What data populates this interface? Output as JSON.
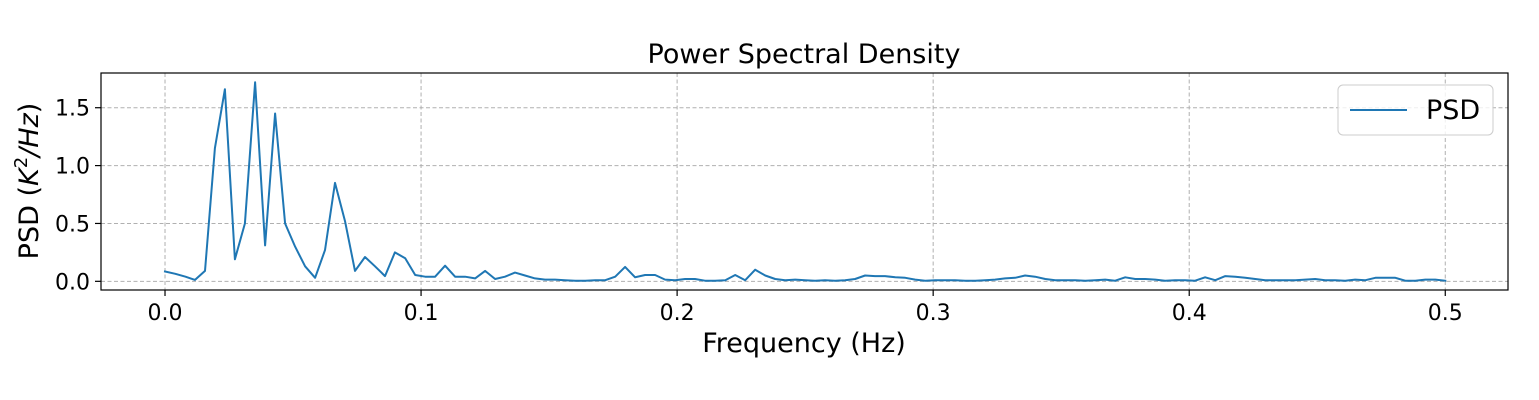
{
  "chart_data": {
    "type": "line",
    "title": "Power Spectral Density",
    "xlabel": "Frequency (Hz)",
    "ylabel_main": "PSD (",
    "ylabel_math": "K",
    "ylabel_sup": "2",
    "ylabel_rest": "/Hz",
    "ylabel_close": ")",
    "xlim": [
      -0.025,
      0.5245
    ],
    "ylim": [
      -0.075,
      1.8
    ],
    "xticks": [
      0.0,
      0.1,
      0.2,
      0.3,
      0.4,
      0.5
    ],
    "xtick_labels": [
      "0.0",
      "0.1",
      "0.2",
      "0.3",
      "0.4",
      "0.5"
    ],
    "yticks": [
      0.0,
      0.5,
      1.0,
      1.5
    ],
    "ytick_labels": [
      "0.0",
      "0.5",
      "1.0",
      "1.5"
    ],
    "grid": true,
    "legend": {
      "position": "upper-right",
      "entries": [
        "PSD"
      ]
    },
    "series": [
      {
        "name": "PSD",
        "color": "#1f77b4",
        "x": [
          0.0,
          0.004,
          0.008,
          0.0117,
          0.0156,
          0.0195,
          0.0234,
          0.0273,
          0.0312,
          0.0352,
          0.0391,
          0.043,
          0.0469,
          0.0508,
          0.0547,
          0.0586,
          0.0625,
          0.0664,
          0.0703,
          0.0742,
          0.0781,
          0.082,
          0.0859,
          0.0898,
          0.0938,
          0.0977,
          0.1016,
          0.1055,
          0.1094,
          0.1133,
          0.1172,
          0.1211,
          0.125,
          0.1289,
          0.1328,
          0.1367,
          0.1406,
          0.1445,
          0.1484,
          0.1523,
          0.1562,
          0.1602,
          0.1641,
          0.168,
          0.1719,
          0.1758,
          0.1797,
          0.1836,
          0.1875,
          0.1914,
          0.1953,
          0.1992,
          0.2031,
          0.207,
          0.2109,
          0.2148,
          0.2188,
          0.2227,
          0.2266,
          0.2305,
          0.2344,
          0.2383,
          0.2422,
          0.2461,
          0.25,
          0.2539,
          0.2578,
          0.2617,
          0.2656,
          0.2695,
          0.2734,
          0.2773,
          0.2812,
          0.2852,
          0.2891,
          0.293,
          0.2969,
          0.3008,
          0.3047,
          0.3086,
          0.3125,
          0.3164,
          0.3203,
          0.3242,
          0.3281,
          0.332,
          0.3359,
          0.3398,
          0.3438,
          0.3477,
          0.3516,
          0.3555,
          0.3594,
          0.3633,
          0.3672,
          0.3711,
          0.375,
          0.3789,
          0.3828,
          0.3867,
          0.3906,
          0.3945,
          0.3984,
          0.4023,
          0.4062,
          0.4102,
          0.4141,
          0.418,
          0.4219,
          0.4258,
          0.4297,
          0.4336,
          0.4375,
          0.4414,
          0.4453,
          0.4492,
          0.4531,
          0.457,
          0.4609,
          0.4648,
          0.4688,
          0.4727,
          0.4766,
          0.4805,
          0.4844,
          0.4883,
          0.4922,
          0.4961,
          0.5
        ],
        "y": [
          0.085,
          0.065,
          0.04,
          0.012,
          0.09,
          1.15,
          1.66,
          0.19,
          0.5,
          1.72,
          0.31,
          1.45,
          0.5,
          0.3,
          0.13,
          0.03,
          0.27,
          0.85,
          0.52,
          0.09,
          0.21,
          0.13,
          0.045,
          0.25,
          0.2,
          0.055,
          0.04,
          0.04,
          0.135,
          0.04,
          0.04,
          0.025,
          0.09,
          0.02,
          0.04,
          0.075,
          0.05,
          0.025,
          0.015,
          0.015,
          0.01,
          0.005,
          0.005,
          0.01,
          0.01,
          0.04,
          0.125,
          0.035,
          0.055,
          0.055,
          0.015,
          0.01,
          0.02,
          0.02,
          0.005,
          0.005,
          0.01,
          0.055,
          0.01,
          0.1,
          0.05,
          0.02,
          0.01,
          0.015,
          0.01,
          0.005,
          0.01,
          0.005,
          0.01,
          0.02,
          0.05,
          0.045,
          0.045,
          0.035,
          0.03,
          0.015,
          0.005,
          0.01,
          0.01,
          0.01,
          0.005,
          0.005,
          0.01,
          0.015,
          0.025,
          0.03,
          0.05,
          0.04,
          0.02,
          0.01,
          0.01,
          0.01,
          0.005,
          0.01,
          0.015,
          0.005,
          0.035,
          0.02,
          0.02,
          0.015,
          0.005,
          0.01,
          0.01,
          0.005,
          0.035,
          0.01,
          0.045,
          0.04,
          0.03,
          0.02,
          0.01,
          0.01,
          0.01,
          0.01,
          0.015,
          0.02,
          0.01,
          0.01,
          0.005,
          0.015,
          0.01,
          0.03,
          0.03,
          0.03,
          0.005,
          0.005,
          0.015,
          0.015,
          0.005
        ]
      }
    ]
  }
}
